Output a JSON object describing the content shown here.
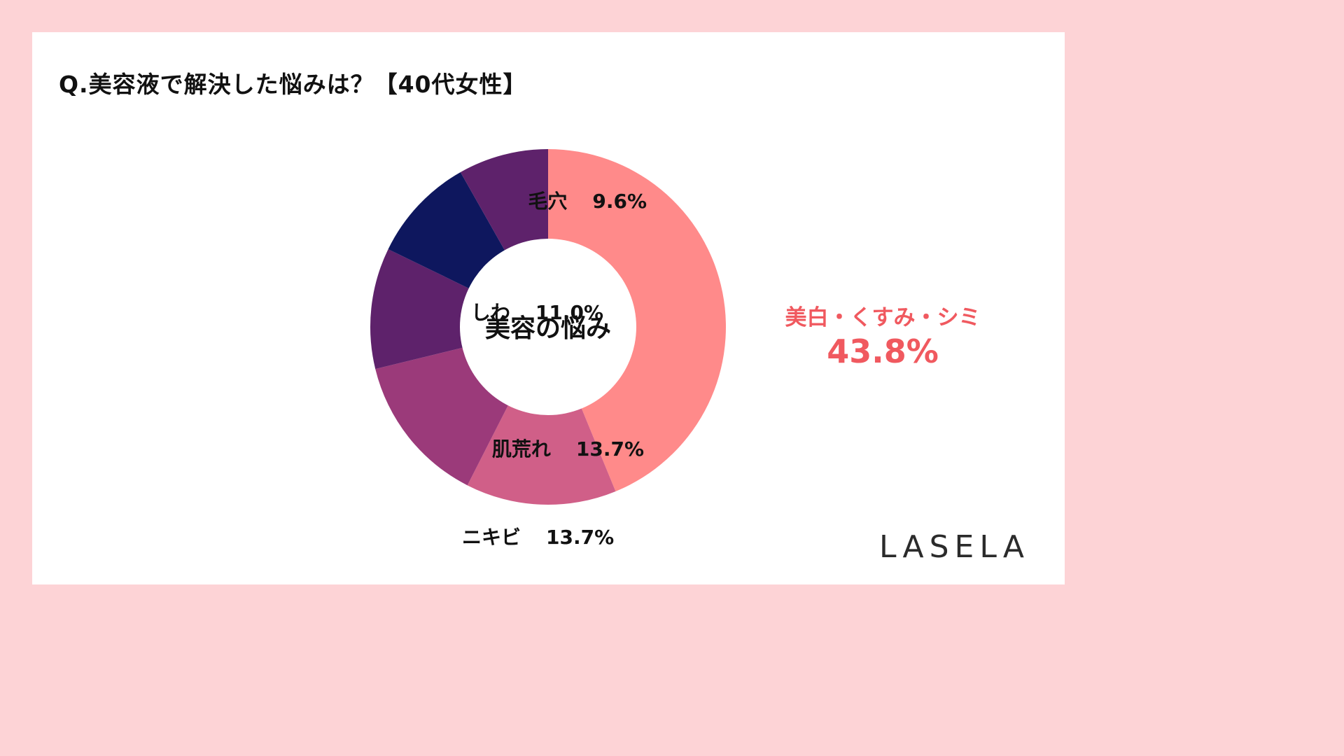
{
  "title": "Q.美容液で解決した悩みは？【40代女性】",
  "logo": "LASELA",
  "chart_data": {
    "type": "pie",
    "center_label": "美容の悩み",
    "categories": [
      "美白・くすみ・シミ",
      "ニキビ",
      "肌荒れ",
      "しわ",
      "毛穴",
      ""
    ],
    "values": [
      43.8,
      13.7,
      13.7,
      11.0,
      9.6,
      8.2
    ],
    "value_labels": [
      "43.8%",
      "13.7%",
      "13.7%",
      "11.0%",
      "9.6%",
      ""
    ],
    "colors": [
      "#ff8a8a",
      "#d05f88",
      "#9b3a7a",
      "#5e226b",
      "#0e175e",
      "#5e226b"
    ]
  }
}
